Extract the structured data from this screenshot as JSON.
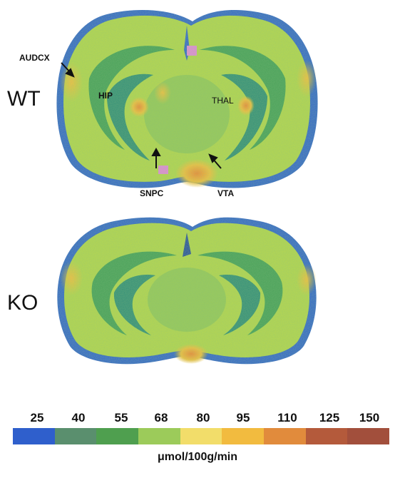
{
  "panels": [
    {
      "label": "WT"
    },
    {
      "label": "KO"
    }
  ],
  "annotations": {
    "audcx": "AUDCX",
    "hip": "HIP",
    "thal": "THAL",
    "snpc": "SNPC",
    "vta": "VTA"
  },
  "colorbar": {
    "ticks": [
      "25",
      "40",
      "55",
      "68",
      "80",
      "95",
      "110",
      "125",
      "150"
    ],
    "colors": [
      "#2f5fcc",
      "#5a8f6e",
      "#4f9f4f",
      "#9ccb5a",
      "#f2dd6a",
      "#f2bb3f",
      "#e18b3c",
      "#b45a3b",
      "#a24f3c"
    ],
    "unit": "μmol/100g/min"
  },
  "heatmap_colors": {
    "low": "#2f5fcc",
    "midlow": "#4aa25a",
    "mid": "#b8d84e",
    "high": "#f2c23a",
    "peak": "#f08a2a"
  }
}
